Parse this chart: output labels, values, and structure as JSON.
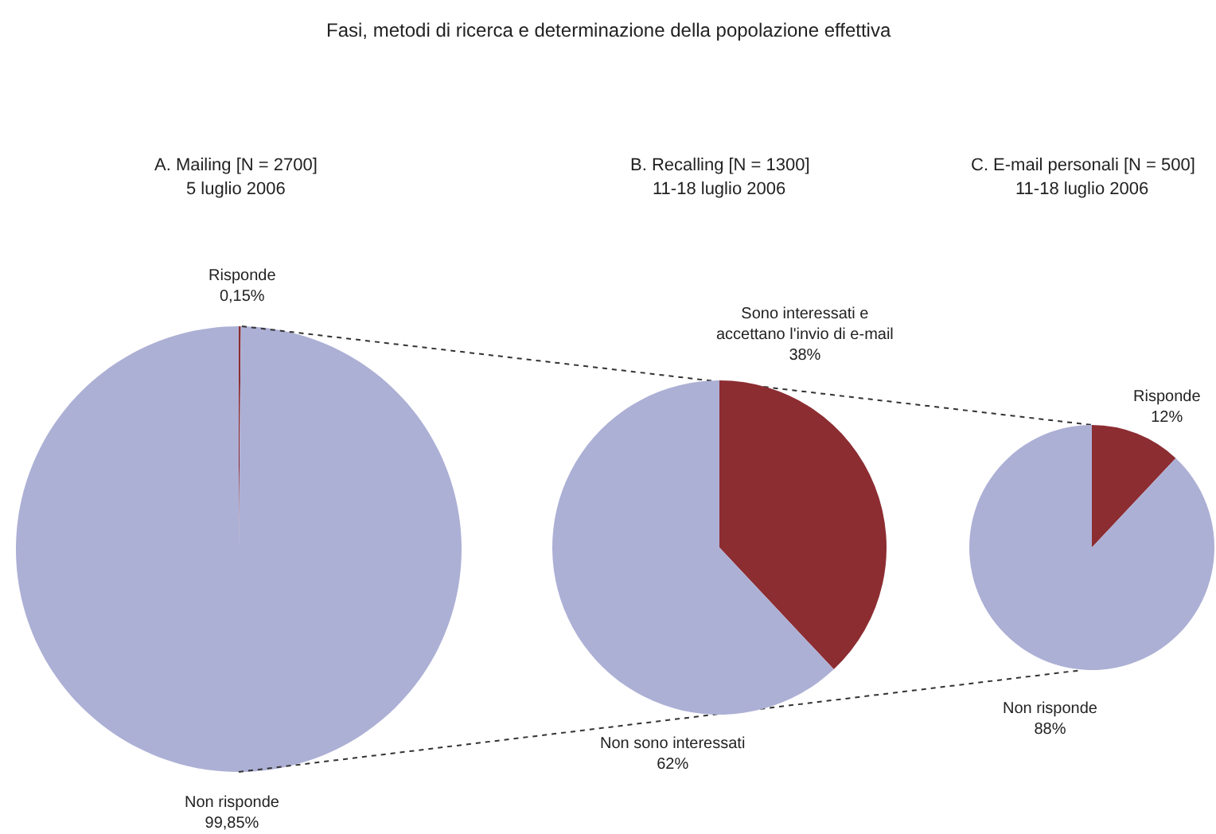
{
  "chart_data": [
    {
      "type": "pie",
      "title": "A. Mailing [N = 2700]",
      "subtitle": "5 luglio 2006",
      "annotations": [
        "Fasi, metodi di ricerca e determinazione della popolazione effettiva"
      ],
      "categories": [
        "Risponde",
        "Non risponde"
      ],
      "values": [
        0.15,
        99.85
      ],
      "value_labels": [
        "0,15%",
        "99,85%"
      ],
      "colors": [
        "#8c2d32",
        "#adb0d5"
      ]
    },
    {
      "type": "pie",
      "title": "B. Recalling [N = 1300]",
      "subtitle": "11-18 luglio 2006",
      "categories": [
        "Sono interessati e\naccettano l'invio di e-mail",
        "Non sono interessati"
      ],
      "values": [
        38,
        62
      ],
      "value_labels": [
        "38%",
        "62%"
      ],
      "colors": [
        "#8c2d32",
        "#adb0d5"
      ]
    },
    {
      "type": "pie",
      "title": "C. E-mail personali [N = 500]",
      "subtitle": "11-18 luglio 2006",
      "categories": [
        "Risponde",
        "Non risponde"
      ],
      "values": [
        12,
        88
      ],
      "value_labels": [
        "12%",
        "88%"
      ],
      "colors": [
        "#8c2d32",
        "#adb0d5"
      ]
    }
  ]
}
